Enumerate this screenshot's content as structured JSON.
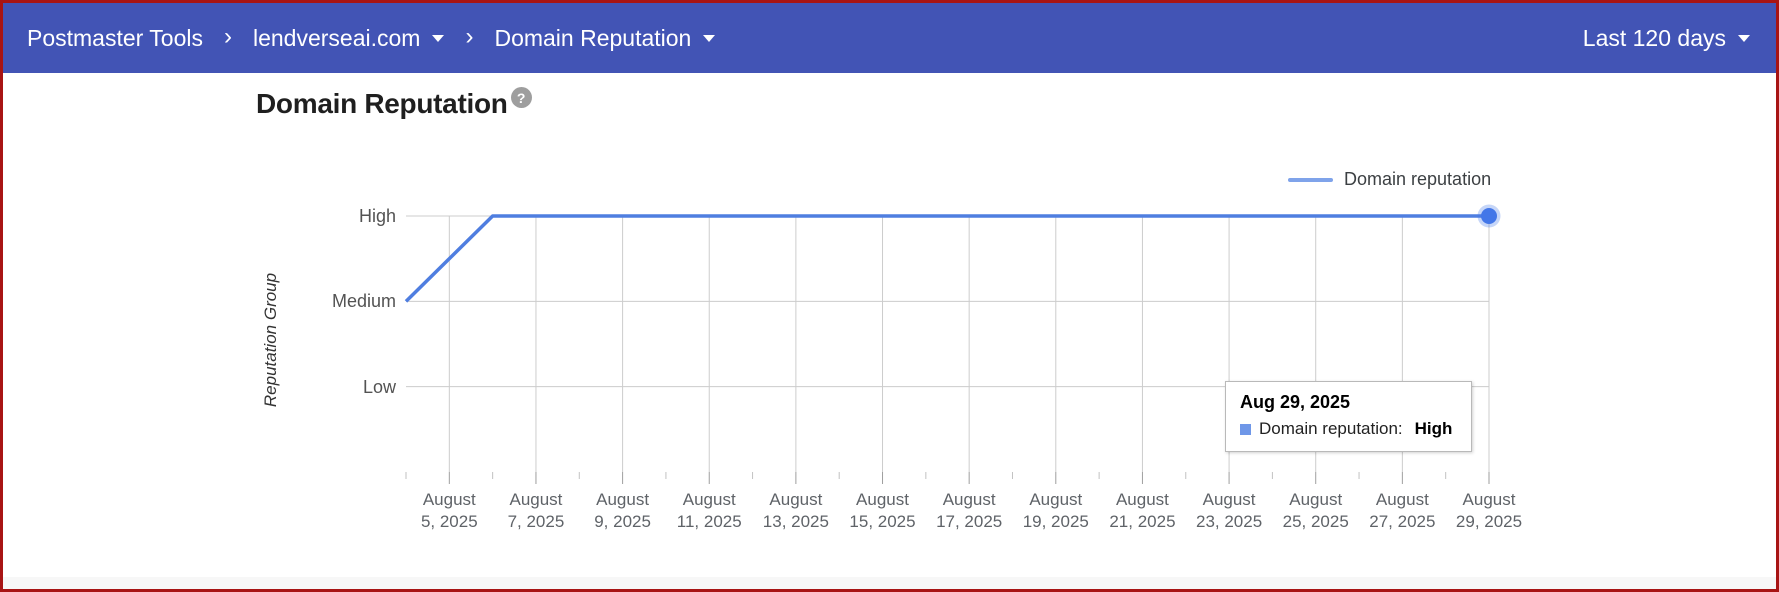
{
  "window": {
    "border_color": "#a81414"
  },
  "header": {
    "bg_color": "#4254b5",
    "app_title": "Postmaster Tools",
    "separator": "›",
    "domain": "lendverseai.com",
    "section": "Domain Reputation",
    "date_range": "Last 120 days"
  },
  "main": {
    "title": "Domain Reputation",
    "help_glyph": "?"
  },
  "tooltip": {
    "date": "Aug 29, 2025",
    "series_label": "Domain reputation:",
    "value": "High"
  },
  "chart_data": {
    "type": "line",
    "title": "Domain Reputation",
    "ylabel": "Reputation Group",
    "y_categories": [
      "High",
      "Medium",
      "Low"
    ],
    "x_tick_labels": [
      "August 5, 2025",
      "August 7, 2025",
      "August 9, 2025",
      "August 11, 2025",
      "August 13, 2025",
      "August 15, 2025",
      "August 17, 2025",
      "August 19, 2025",
      "August 21, 2025",
      "August 23, 2025",
      "August 25, 2025",
      "August 27, 2025",
      "August 29, 2025"
    ],
    "x_axis_start": "August 4, 2025",
    "x_axis_end": "August 29, 2025",
    "x_span_days": 25,
    "grid": true,
    "legend_position": "top-right",
    "series": [
      {
        "name": "Domain reputation",
        "color": "#4f7ee0",
        "marker_color": "#4377e8",
        "points": [
          {
            "date": "August 4, 2025",
            "day_index": 0,
            "value": "Medium"
          },
          {
            "date": "August 6, 2025",
            "day_index": 2,
            "value": "High"
          },
          {
            "date": "August 29, 2025",
            "day_index": 25,
            "value": "High"
          }
        ]
      }
    ],
    "end_marker": {
      "date": "August 29, 2025",
      "day_index": 25,
      "value": "High"
    }
  }
}
